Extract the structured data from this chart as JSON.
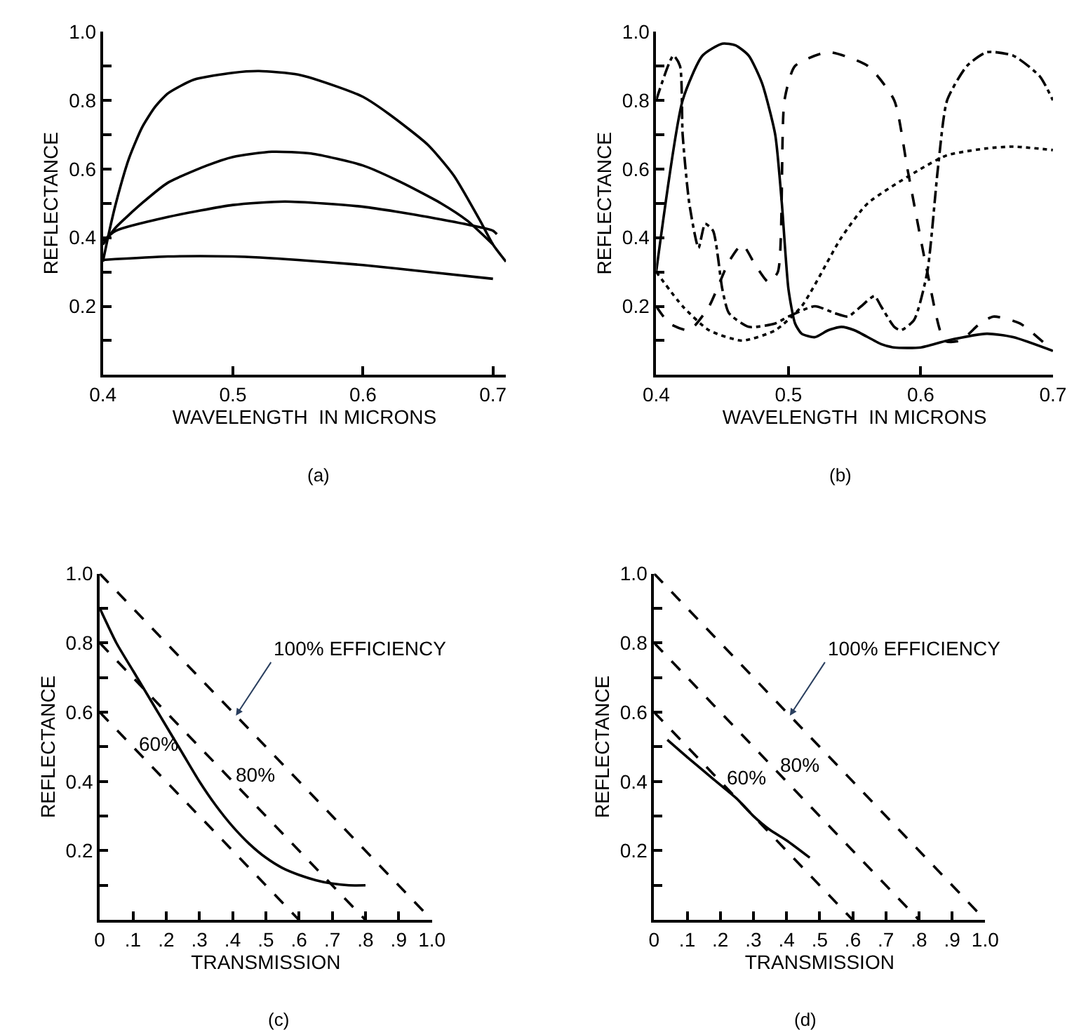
{
  "chart_data": [
    {
      "type": "line",
      "title": "(a)",
      "xlabel": "WAVELENGTH  IN MICRONS",
      "ylabel": "REFLECTANCE",
      "xlim": [
        0.4,
        0.71
      ],
      "ylim": [
        0,
        1.0
      ],
      "xticks": [
        {
          "value": 0.4,
          "label": "0.4"
        },
        {
          "value": 0.5,
          "label": "0.5"
        },
        {
          "value": 0.6,
          "label": "0.6"
        },
        {
          "value": 0.7,
          "label": "0.7"
        }
      ],
      "yticks": [
        {
          "value": 0.1,
          "label": null
        },
        {
          "value": 0.2,
          "label": "0.2"
        },
        {
          "value": 0.3,
          "label": null
        },
        {
          "value": 0.4,
          "label": "0.4"
        },
        {
          "value": 0.5,
          "label": null
        },
        {
          "value": 0.6,
          "label": "0.6"
        },
        {
          "value": 0.7,
          "label": null
        },
        {
          "value": 0.8,
          "label": "0.8"
        },
        {
          "value": 0.9,
          "label": null
        },
        {
          "value": 1.0,
          "label": "1.0"
        }
      ],
      "line_style": "solid",
      "marker": "none",
      "series": [
        {
          "color": "#000000",
          "x": [
            0.4,
            0.405,
            0.41,
            0.42,
            0.43,
            0.44,
            0.45,
            0.47,
            0.5,
            0.52,
            0.55,
            0.58,
            0.6,
            0.62,
            0.65,
            0.67,
            0.69,
            0.7,
            0.71
          ],
          "values": [
            0.33,
            0.42,
            0.5,
            0.63,
            0.72,
            0.78,
            0.82,
            0.86,
            0.88,
            0.885,
            0.875,
            0.84,
            0.81,
            0.76,
            0.67,
            0.58,
            0.45,
            0.38,
            0.33
          ]
        },
        {
          "color": "#000000",
          "x": [
            0.4,
            0.41,
            0.43,
            0.45,
            0.48,
            0.5,
            0.53,
            0.56,
            0.6,
            0.63,
            0.66,
            0.68,
            0.7
          ],
          "values": [
            0.38,
            0.43,
            0.5,
            0.56,
            0.61,
            0.635,
            0.65,
            0.645,
            0.61,
            0.56,
            0.5,
            0.45,
            0.38
          ]
        },
        {
          "color": "#000000",
          "x": [
            0.4,
            0.41,
            0.45,
            0.5,
            0.54,
            0.6,
            0.65,
            0.7,
            0.703
          ],
          "values": [
            0.39,
            0.42,
            0.46,
            0.495,
            0.505,
            0.49,
            0.46,
            0.42,
            0.41
          ]
        },
        {
          "color": "#000000",
          "x": [
            0.4,
            0.45,
            0.5,
            0.55,
            0.6,
            0.65,
            0.7
          ],
          "values": [
            0.335,
            0.345,
            0.345,
            0.335,
            0.32,
            0.3,
            0.28
          ]
        }
      ]
    },
    {
      "type": "line",
      "title": "(b)",
      "xlabel": "WAVELENGTH  IN MICRONS",
      "ylabel": "REFLECTANCE",
      "xlim": [
        0.4,
        0.7
      ],
      "ylim": [
        0,
        1.0
      ],
      "xticks": [
        {
          "value": 0.4,
          "label": "0.4"
        },
        {
          "value": 0.5,
          "label": "0.5"
        },
        {
          "value": 0.6,
          "label": "0.6"
        },
        {
          "value": 0.7,
          "label": "0.7"
        }
      ],
      "yticks": [
        {
          "value": 0.1,
          "label": null
        },
        {
          "value": 0.2,
          "label": "0.2"
        },
        {
          "value": 0.3,
          "label": null
        },
        {
          "value": 0.4,
          "label": "0.4"
        },
        {
          "value": 0.5,
          "label": null
        },
        {
          "value": 0.6,
          "label": "0.6"
        },
        {
          "value": 0.7,
          "label": null
        },
        {
          "value": 0.8,
          "label": "0.8"
        },
        {
          "value": 0.9,
          "label": null
        },
        {
          "value": 1.0,
          "label": "1.0"
        }
      ],
      "marker": "none",
      "series": [
        {
          "color": "#000000",
          "line_style": "solid",
          "x": [
            0.4,
            0.42,
            0.435,
            0.45,
            0.46,
            0.47,
            0.48,
            0.49,
            0.495,
            0.5,
            0.505,
            0.51,
            0.52,
            0.53,
            0.54,
            0.55,
            0.57,
            0.58,
            0.6,
            0.62,
            0.65,
            0.67,
            0.7
          ],
          "values": [
            0.3,
            0.8,
            0.93,
            0.965,
            0.96,
            0.93,
            0.85,
            0.7,
            0.5,
            0.25,
            0.15,
            0.12,
            0.11,
            0.13,
            0.14,
            0.13,
            0.09,
            0.08,
            0.08,
            0.1,
            0.12,
            0.11,
            0.07
          ]
        },
        {
          "color": "#000000",
          "line_style": "dashed",
          "x": [
            0.4,
            0.41,
            0.425,
            0.44,
            0.455,
            0.465,
            0.475,
            0.485,
            0.492,
            0.497,
            0.505,
            0.53,
            0.56,
            0.58,
            0.59,
            0.605,
            0.618,
            0.63,
            0.645,
            0.655,
            0.675,
            0.7
          ],
          "values": [
            0.2,
            0.15,
            0.13,
            0.2,
            0.33,
            0.38,
            0.32,
            0.27,
            0.3,
            0.8,
            0.9,
            0.94,
            0.9,
            0.8,
            0.6,
            0.3,
            0.1,
            0.1,
            0.15,
            0.17,
            0.15,
            0.07
          ]
        },
        {
          "color": "#000000",
          "line_style": "dotted",
          "x": [
            0.4,
            0.42,
            0.44,
            0.465,
            0.49,
            0.51,
            0.54,
            0.56,
            0.6,
            0.62,
            0.65,
            0.67,
            0.7
          ],
          "values": [
            0.3,
            0.2,
            0.13,
            0.1,
            0.13,
            0.2,
            0.4,
            0.5,
            0.6,
            0.64,
            0.66,
            0.665,
            0.655
          ]
        },
        {
          "color": "#000000",
          "line_style": "dashdot",
          "x": [
            0.4,
            0.413,
            0.418,
            0.42,
            0.425,
            0.432,
            0.437,
            0.443,
            0.45,
            0.455,
            0.47,
            0.49,
            0.5,
            0.52,
            0.535,
            0.545,
            0.555,
            0.565,
            0.57,
            0.58,
            0.585,
            0.595,
            0.605,
            0.613,
            0.62,
            0.635,
            0.65,
            0.67,
            0.69,
            0.7
          ],
          "values": [
            0.8,
            0.93,
            0.9,
            0.7,
            0.5,
            0.37,
            0.44,
            0.42,
            0.25,
            0.18,
            0.14,
            0.15,
            0.17,
            0.2,
            0.18,
            0.17,
            0.2,
            0.23,
            0.2,
            0.14,
            0.13,
            0.16,
            0.3,
            0.6,
            0.8,
            0.9,
            0.94,
            0.93,
            0.87,
            0.8
          ]
        }
      ]
    },
    {
      "type": "line",
      "title": "(c)",
      "xlabel": "TRANSMISSION",
      "ylabel": "REFLECTANCE",
      "xlim": [
        0,
        1.0
      ],
      "ylim": [
        0,
        1.0
      ],
      "xticks": [
        {
          "value": 0,
          "label": "0"
        },
        {
          "value": 0.1,
          "label": ".1"
        },
        {
          "value": 0.2,
          "label": ".2"
        },
        {
          "value": 0.3,
          "label": ".3"
        },
        {
          "value": 0.4,
          "label": ".4"
        },
        {
          "value": 0.5,
          "label": ".5"
        },
        {
          "value": 0.6,
          "label": ".6"
        },
        {
          "value": 0.7,
          "label": ".7"
        },
        {
          "value": 0.8,
          "label": ".8"
        },
        {
          "value": 0.9,
          "label": ".9"
        },
        {
          "value": 1.0,
          "label": "1.0"
        }
      ],
      "yticks": [
        {
          "value": 0.1,
          "label": null
        },
        {
          "value": 0.2,
          "label": "0.2"
        },
        {
          "value": 0.3,
          "label": null
        },
        {
          "value": 0.4,
          "label": "0.4"
        },
        {
          "value": 0.5,
          "label": null
        },
        {
          "value": 0.6,
          "label": "0.6"
        },
        {
          "value": 0.7,
          "label": null
        },
        {
          "value": 0.8,
          "label": "0.8"
        },
        {
          "value": 0.9,
          "label": null
        },
        {
          "value": 1.0,
          "label": "1.0"
        }
      ],
      "marker": "none",
      "annotations": [
        {
          "text": "100% EFFICIENCY",
          "x": 0.41,
          "y": 0.59
        },
        {
          "text": "80%",
          "x": 0.38,
          "y": 0.42
        },
        {
          "text": "60%",
          "x": 0.09,
          "y": 0.51
        }
      ],
      "series": [
        {
          "color": "#000000",
          "line_style": "dashed",
          "x": [
            0,
            1.0
          ],
          "values": [
            1.0,
            0
          ]
        },
        {
          "color": "#000000",
          "line_style": "dashed",
          "x": [
            0,
            0.8
          ],
          "values": [
            0.8,
            0
          ]
        },
        {
          "color": "#000000",
          "line_style": "dashed",
          "x": [
            0,
            0.6
          ],
          "values": [
            0.6,
            0
          ]
        },
        {
          "color": "#000000",
          "line_style": "solid",
          "x": [
            0,
            0.05,
            0.1,
            0.15,
            0.2,
            0.25,
            0.3,
            0.35,
            0.4,
            0.45,
            0.5,
            0.55,
            0.6,
            0.65,
            0.7,
            0.75,
            0.8
          ],
          "values": [
            0.9,
            0.8,
            0.72,
            0.64,
            0.56,
            0.48,
            0.4,
            0.33,
            0.27,
            0.22,
            0.18,
            0.15,
            0.13,
            0.115,
            0.105,
            0.1,
            0.1
          ]
        }
      ]
    },
    {
      "type": "line",
      "title": "(d)",
      "xlabel": "TRANSMISSION",
      "ylabel": "REFLECTANCE",
      "xlim": [
        0,
        1.0
      ],
      "ylim": [
        0,
        1.0
      ],
      "xticks": [
        {
          "value": 0,
          "label": "0"
        },
        {
          "value": 0.1,
          "label": ".1"
        },
        {
          "value": 0.2,
          "label": ".2"
        },
        {
          "value": 0.3,
          "label": ".3"
        },
        {
          "value": 0.4,
          "label": ".4"
        },
        {
          "value": 0.5,
          "label": ".5"
        },
        {
          "value": 0.6,
          "label": ".6"
        },
        {
          "value": 0.7,
          "label": ".7"
        },
        {
          "value": 0.8,
          "label": ".8"
        },
        {
          "value": 0.9,
          "label": ".9"
        },
        {
          "value": 1.0,
          "label": "1.0"
        }
      ],
      "yticks": [
        {
          "value": 0.1,
          "label": null
        },
        {
          "value": 0.2,
          "label": "0.2"
        },
        {
          "value": 0.3,
          "label": null
        },
        {
          "value": 0.4,
          "label": "0.4"
        },
        {
          "value": 0.5,
          "label": null
        },
        {
          "value": 0.6,
          "label": "0.6"
        },
        {
          "value": 0.7,
          "label": null
        },
        {
          "value": 0.8,
          "label": "0.8"
        },
        {
          "value": 0.9,
          "label": null
        },
        {
          "value": 1.0,
          "label": "1.0"
        }
      ],
      "marker": "none",
      "annotations": [
        {
          "text": "100% EFFICIENCY",
          "x": 0.41,
          "y": 0.59
        },
        {
          "text": "80%",
          "x": 0.35,
          "y": 0.45
        },
        {
          "text": "60%",
          "x": 0.19,
          "y": 0.41
        }
      ],
      "series": [
        {
          "color": "#000000",
          "line_style": "dashed",
          "x": [
            0,
            1.0
          ],
          "values": [
            1.0,
            0
          ]
        },
        {
          "color": "#000000",
          "line_style": "dashed",
          "x": [
            0,
            0.8
          ],
          "values": [
            0.8,
            0
          ]
        },
        {
          "color": "#000000",
          "line_style": "dashed",
          "x": [
            0,
            0.6
          ],
          "values": [
            0.6,
            0
          ]
        },
        {
          "color": "#000000",
          "line_style": "solid",
          "x": [
            0.04,
            0.1,
            0.15,
            0.2,
            0.25,
            0.3,
            0.35,
            0.4,
            0.47
          ],
          "values": [
            0.52,
            0.47,
            0.43,
            0.39,
            0.35,
            0.3,
            0.26,
            0.23,
            0.18
          ]
        }
      ]
    }
  ]
}
